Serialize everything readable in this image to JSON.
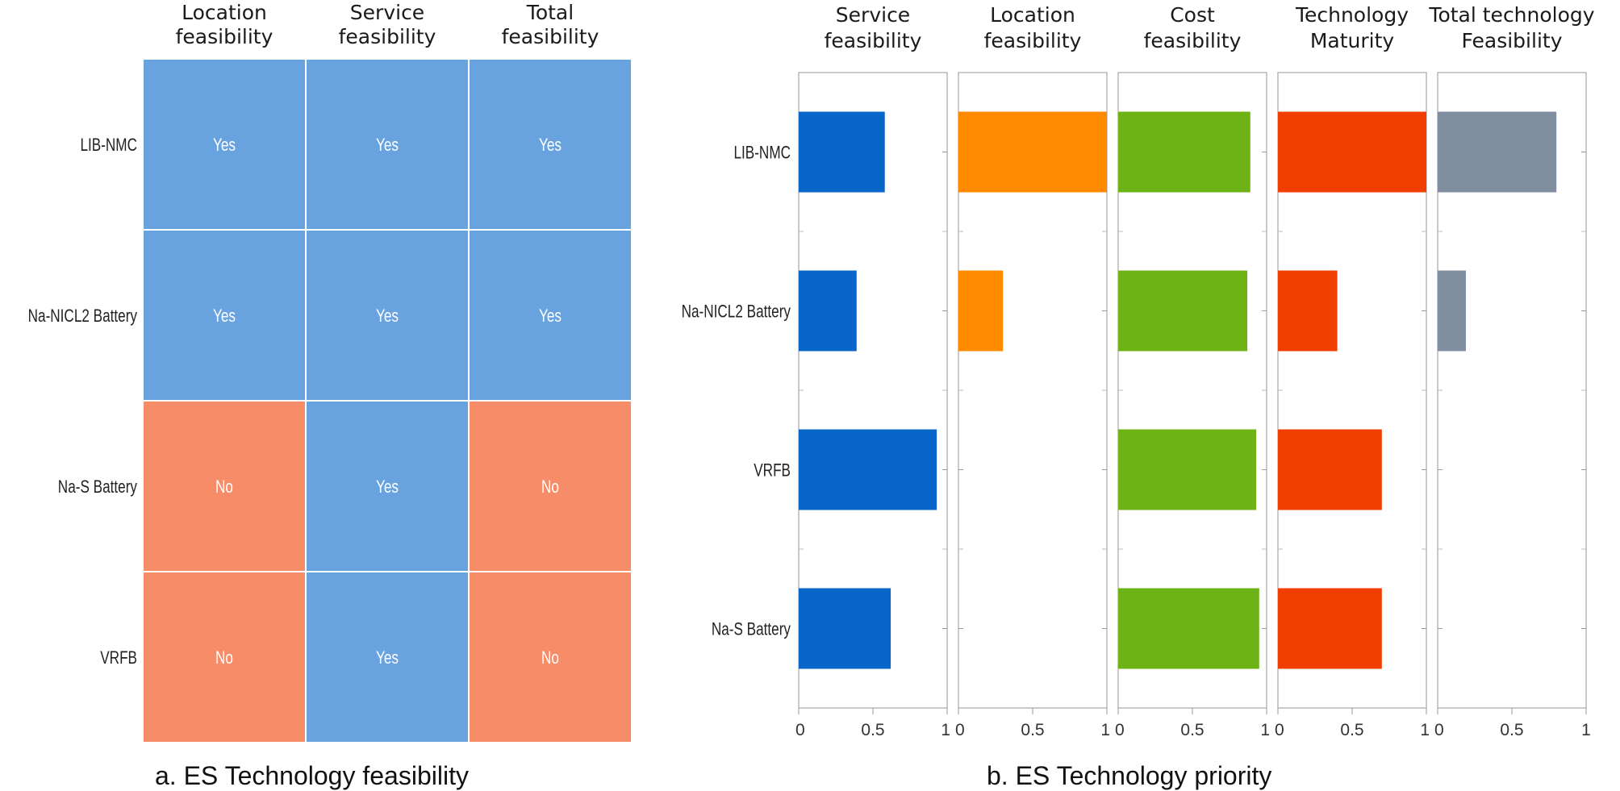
{
  "chart_data": [
    {
      "type": "heatmap",
      "title": "a. ES Technology feasibility",
      "columns": [
        "Location\nfeasibility",
        "Service\nfeasibility",
        "Total\nfeasibility"
      ],
      "rows": [
        "LIB-NMC",
        "Na-NICL2 Battery",
        "Na-S Battery",
        "VRFB"
      ],
      "cells": [
        [
          "Yes",
          "Yes",
          "Yes"
        ],
        [
          "Yes",
          "Yes",
          "Yes"
        ],
        [
          "No",
          "Yes",
          "No"
        ],
        [
          "No",
          "Yes",
          "No"
        ]
      ],
      "colors": {
        "Yes": "#68a3e0",
        "No": "#f78c69"
      }
    },
    {
      "type": "bar",
      "orientation": "horizontal",
      "title": "b. ES Technology priority",
      "categories": [
        "LIB-NMC",
        "Na-NICL2 Battery",
        "VRFB",
        "Na-S Battery"
      ],
      "xlim": [
        0,
        1
      ],
      "xticks": [
        "0",
        "0.5",
        "1"
      ],
      "series": [
        {
          "name": "Service\nfeasibility",
          "color": "#0866c8",
          "values": [
            0.58,
            0.39,
            0.93,
            0.62
          ]
        },
        {
          "name": "Location\nfeasibility",
          "color": "#ff8a00",
          "values": [
            1.0,
            0.3,
            0,
            0
          ]
        },
        {
          "name": "Cost\nfeasibility",
          "color": "#6db315",
          "values": [
            0.89,
            0.87,
            0.93,
            0.95
          ]
        },
        {
          "name": "Technology\nMaturity",
          "color": "#f03e00",
          "values": [
            1.0,
            0.4,
            0.7,
            0.7
          ]
        },
        {
          "name": "Total technology\nFeasibility",
          "color": "#7f8fa0",
          "values": [
            0.8,
            0.19,
            0,
            0
          ]
        }
      ]
    }
  ]
}
